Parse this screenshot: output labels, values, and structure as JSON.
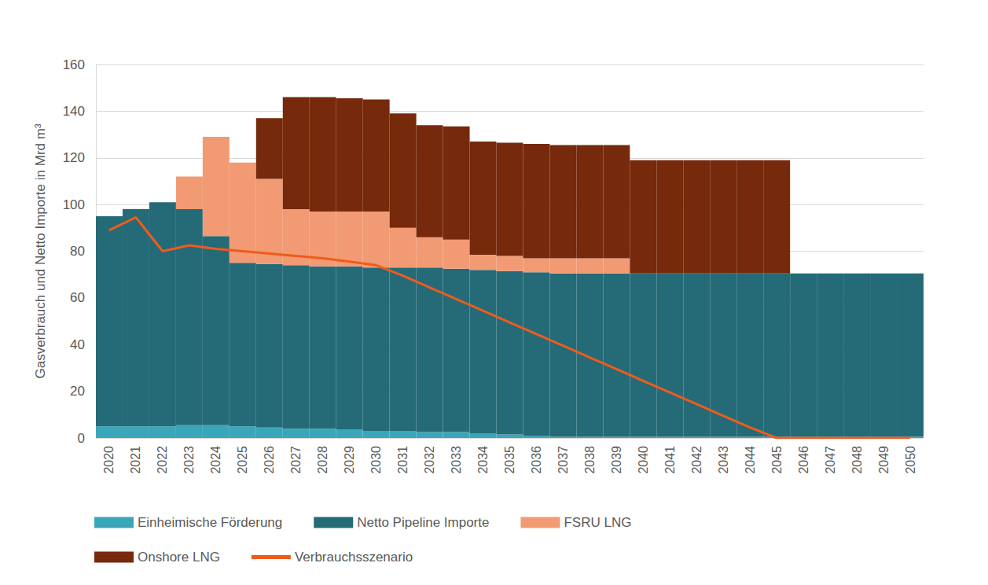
{
  "chart_data": {
    "type": "bar",
    "y_label": "Gasverbrauch und Netto Importe in Mrd m³",
    "categories": [
      "2020",
      "2021",
      "2022",
      "2023",
      "2024",
      "2025",
      "2026",
      "2027",
      "2028",
      "2029",
      "2030",
      "2031",
      "2032",
      "2033",
      "2034",
      "2035",
      "2036",
      "2037",
      "2038",
      "2039",
      "2040",
      "2041",
      "2042",
      "2043",
      "2044",
      "2045",
      "2046",
      "2047",
      "2048",
      "2049",
      "2050"
    ],
    "series": [
      {
        "name": "Einheimische Förderung",
        "type": "bar",
        "color": "#3aa6b9",
        "values": [
          5,
          5,
          5,
          5.5,
          5.5,
          5,
          4.5,
          4,
          4,
          3.5,
          3,
          3,
          2.5,
          2.5,
          2,
          1.5,
          1,
          0.5,
          0.5,
          0.5,
          0.5,
          0.5,
          0.5,
          0.5,
          0.5,
          0.5,
          0.5,
          0.5,
          0.5,
          0.5,
          0.5
        ]
      },
      {
        "name": "Netto Pipeline Importe",
        "type": "bar",
        "color": "#246b77",
        "values": [
          90,
          93,
          96,
          92.5,
          81,
          70,
          70,
          70,
          69.5,
          70,
          70,
          70,
          70.5,
          70,
          70,
          70,
          70,
          70,
          70,
          70,
          70,
          70,
          70,
          70,
          70,
          70,
          70,
          70,
          70,
          70,
          70
        ]
      },
      {
        "name": "FSRU LNG",
        "type": "bar",
        "color": "#f29a73",
        "values": [
          null,
          null,
          null,
          14,
          42.5,
          43,
          36.5,
          24,
          23.5,
          23.5,
          24,
          17,
          13,
          12.5,
          6.5,
          6.5,
          6,
          6.5,
          6.5,
          6.5,
          null,
          null,
          null,
          null,
          null,
          null,
          null,
          null,
          null,
          null,
          null
        ]
      },
      {
        "name": "Onshore LNG",
        "type": "bar",
        "color": "#76290b",
        "values": [
          null,
          null,
          null,
          null,
          null,
          null,
          26,
          48,
          49,
          48.5,
          48,
          49,
          48,
          48.5,
          48.5,
          48.5,
          49,
          48.5,
          48.5,
          48.5,
          48.5,
          48.5,
          48.5,
          48.5,
          48.5,
          48.5,
          null,
          null,
          null,
          null,
          null
        ]
      },
      {
        "name": "Verbrauchsszenario",
        "type": "line",
        "color": "#ef5b1c",
        "values": [
          89,
          94.5,
          80,
          82.5,
          81,
          80,
          79,
          78,
          77,
          75.5,
          74,
          69.5,
          64.5,
          59.5,
          54.5,
          49.5,
          44.5,
          39.5,
          34.5,
          29.5,
          24.5,
          19.5,
          14.5,
          9.5,
          4.5,
          0,
          0,
          0,
          0,
          0,
          0
        ]
      }
    ],
    "stacked": true,
    "ylim": [
      0,
      160
    ],
    "yticks": [
      0,
      20,
      40,
      60,
      80,
      100,
      120,
      140,
      160
    ],
    "grid": true,
    "legend": "bottom"
  }
}
